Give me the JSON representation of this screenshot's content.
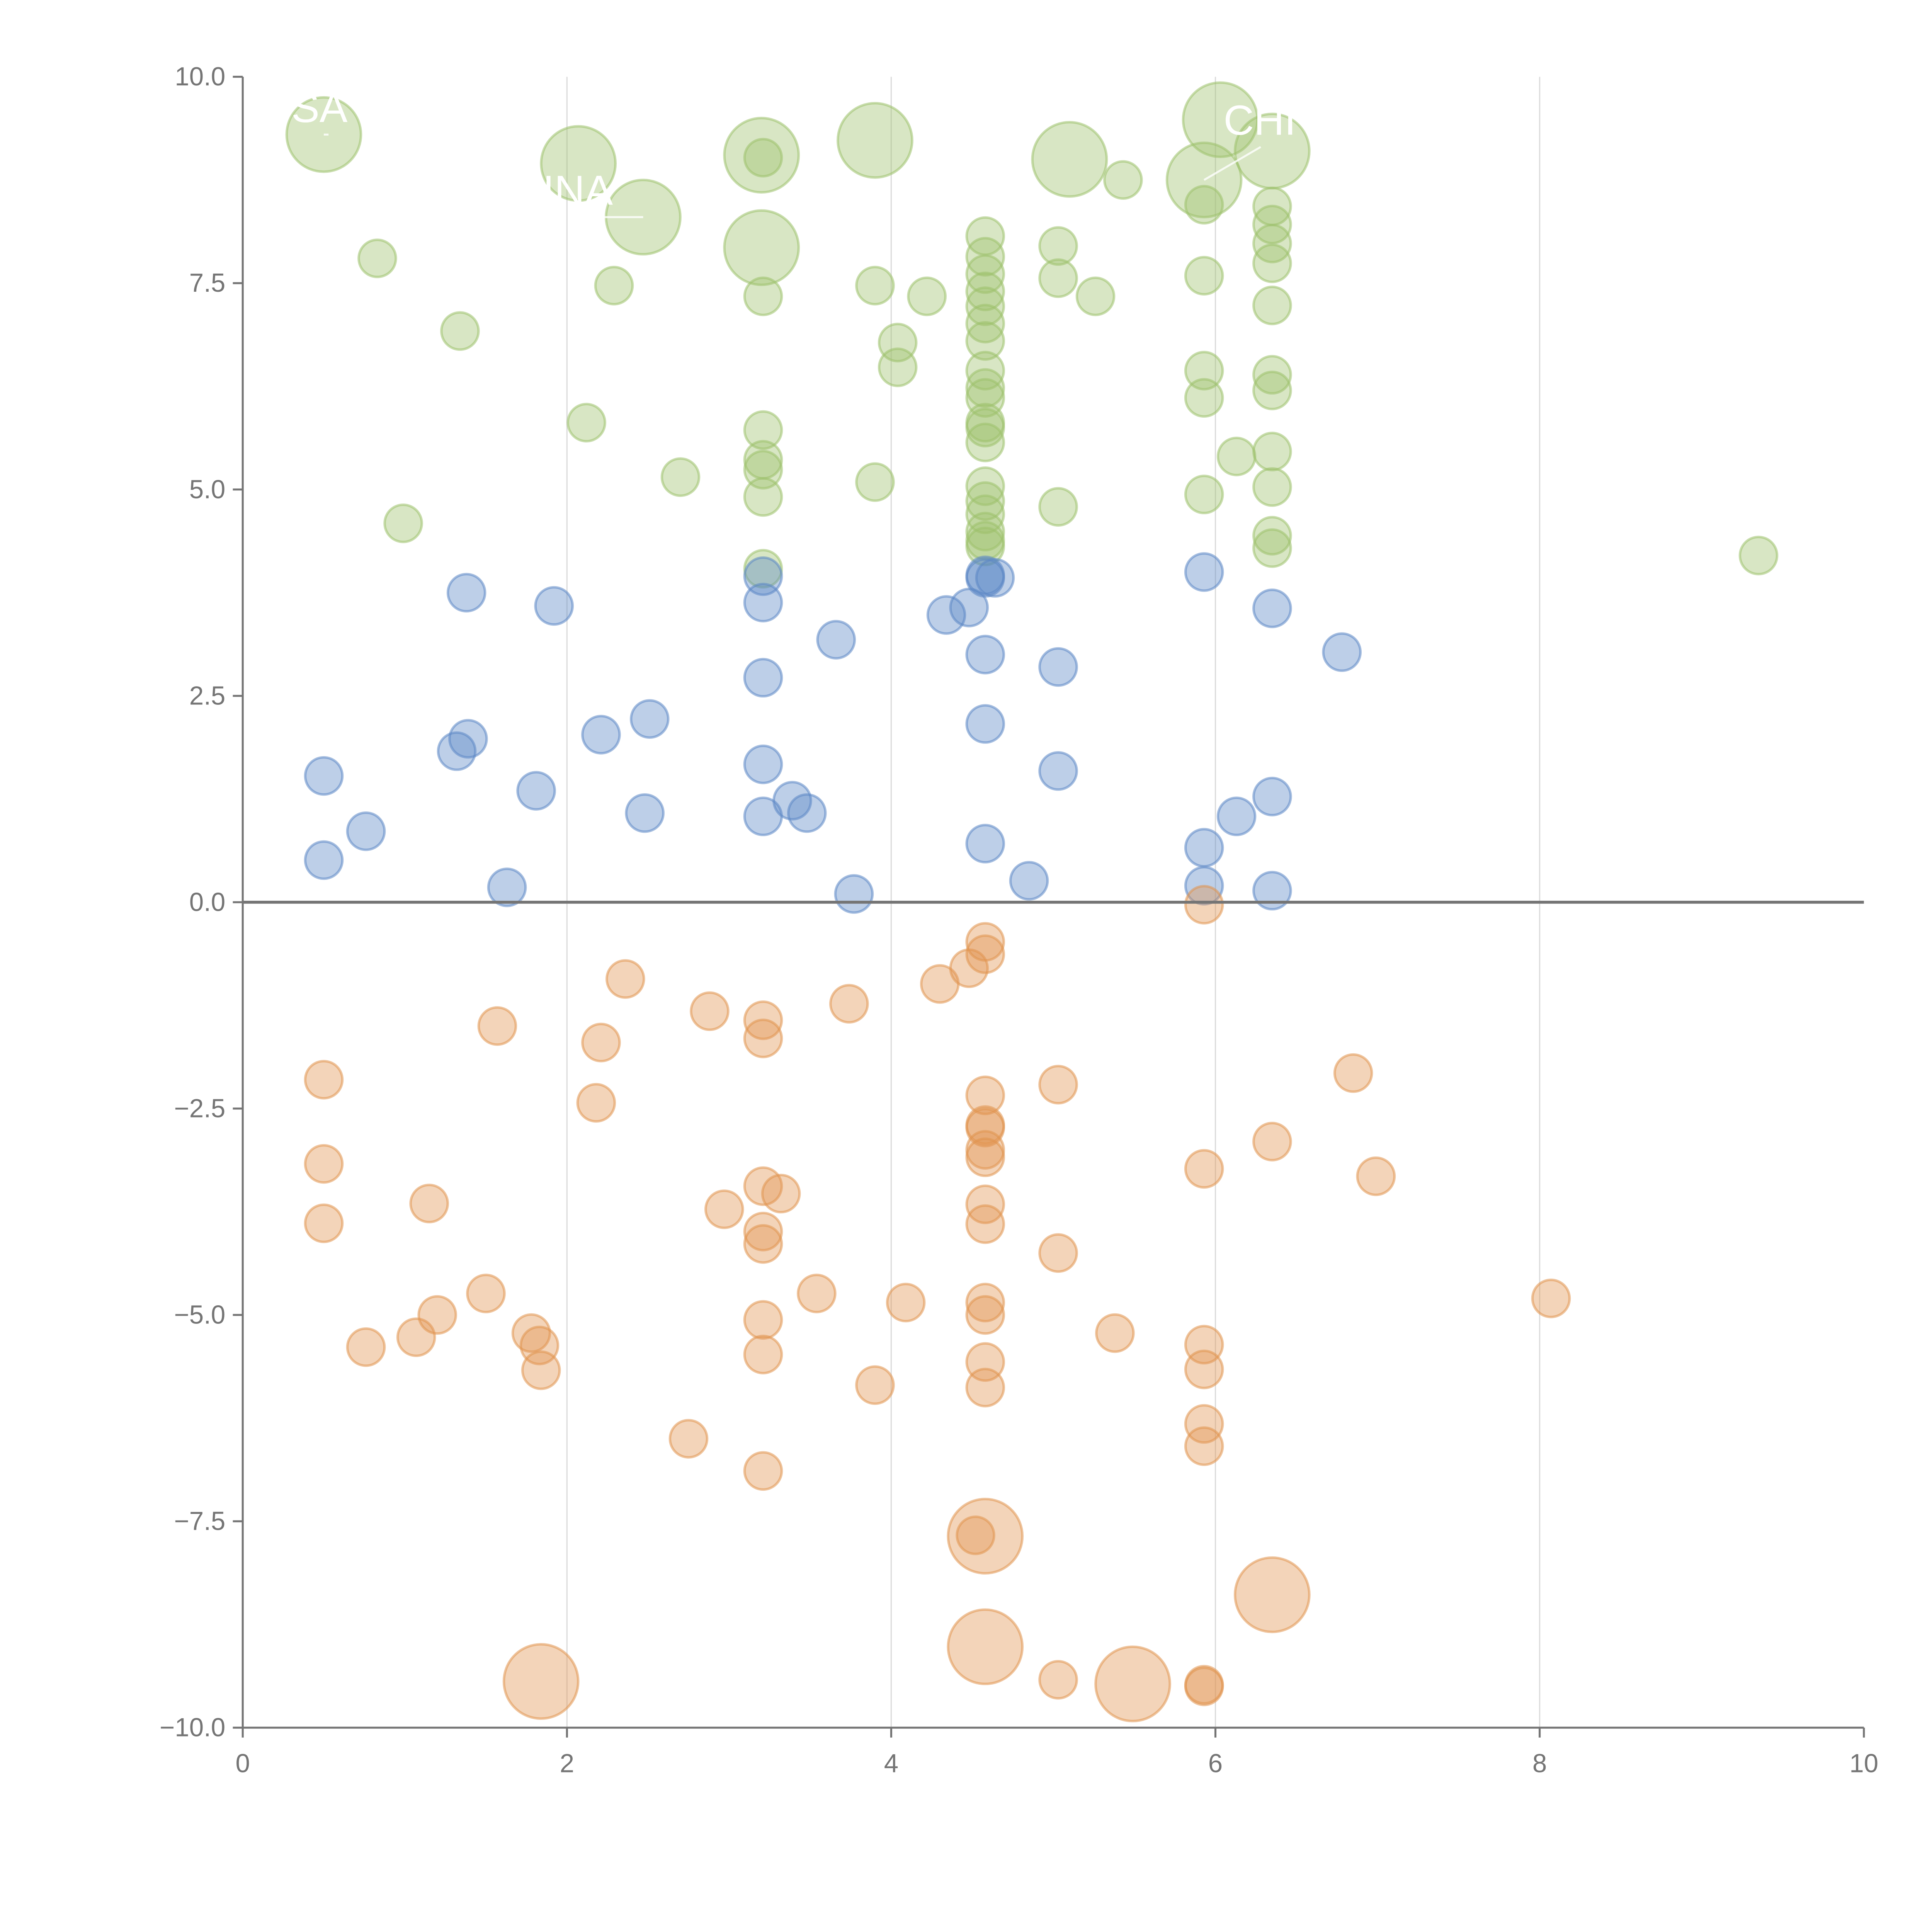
{
  "chart_data": {
    "type": "scatter",
    "title": "",
    "xlabel": "",
    "ylabel": "",
    "xlim": [
      0,
      10
    ],
    "ylim": [
      -10,
      10
    ],
    "xticks": [
      "0",
      "2",
      "4",
      "6",
      "8",
      "10"
    ],
    "yticks": [
      "10.0",
      "7.5",
      "5.0",
      "2.5",
      "0.0",
      "−2.5",
      "−5.0",
      "−7.5",
      "−10.0"
    ],
    "grid": "vertical",
    "reference_line_y": 0,
    "series": [
      {
        "name": "green",
        "color": "#9dc16b",
        "points": [
          [
            0.5,
            9.3,
            4
          ],
          [
            2.07,
            8.95,
            4
          ],
          [
            2.47,
            8.3,
            4
          ],
          [
            3.2,
            9.05,
            4
          ],
          [
            3.2,
            7.93,
            4
          ],
          [
            3.9,
            9.23,
            4
          ],
          [
            5.1,
            9.0,
            4
          ],
          [
            5.93,
            8.75,
            4
          ],
          [
            6.03,
            9.48,
            4
          ],
          [
            6.35,
            9.1,
            4
          ],
          [
            0.83,
            7.8,
            1
          ],
          [
            1.34,
            6.92,
            1
          ],
          [
            0.99,
            4.59,
            1
          ],
          [
            2.29,
            7.47,
            1
          ],
          [
            2.12,
            5.81,
            1
          ],
          [
            2.7,
            5.15,
            1
          ],
          [
            3.21,
            9.02,
            1
          ],
          [
            3.21,
            7.34,
            1
          ],
          [
            3.21,
            5.72,
            1
          ],
          [
            3.21,
            5.36,
            1
          ],
          [
            3.21,
            5.24,
            1
          ],
          [
            3.21,
            4.91,
            1
          ],
          [
            3.21,
            4.04,
            1
          ],
          [
            3.9,
            7.47,
            1
          ],
          [
            3.9,
            5.09,
            1
          ],
          [
            4.22,
            7.34,
            1
          ],
          [
            4.04,
            6.78,
            1
          ],
          [
            4.04,
            6.48,
            1
          ],
          [
            4.58,
            8.07,
            1
          ],
          [
            4.58,
            7.82,
            1
          ],
          [
            4.58,
            7.61,
            1
          ],
          [
            4.58,
            7.4,
            1
          ],
          [
            4.58,
            7.22,
            1
          ],
          [
            4.58,
            7.01,
            1
          ],
          [
            4.58,
            6.8,
            1
          ],
          [
            4.58,
            6.44,
            1
          ],
          [
            4.58,
            6.23,
            1
          ],
          [
            4.58,
            6.11,
            1
          ],
          [
            4.58,
            5.81,
            1
          ],
          [
            4.58,
            5.75,
            1
          ],
          [
            4.58,
            5.57,
            1
          ],
          [
            4.58,
            5.04,
            1
          ],
          [
            4.58,
            4.86,
            1
          ],
          [
            4.58,
            4.7,
            1
          ],
          [
            4.58,
            4.49,
            1
          ],
          [
            4.58,
            4.38,
            1
          ],
          [
            4.58,
            4.31,
            1
          ],
          [
            5.03,
            7.95,
            1
          ],
          [
            5.03,
            7.56,
            1
          ],
          [
            5.03,
            4.79,
            1
          ],
          [
            5.26,
            7.34,
            1
          ],
          [
            5.43,
            8.75,
            1
          ],
          [
            5.93,
            8.45,
            1
          ],
          [
            5.93,
            7.59,
            1
          ],
          [
            5.93,
            6.44,
            1
          ],
          [
            5.93,
            6.11,
            1
          ],
          [
            5.93,
            4.94,
            1
          ],
          [
            6.13,
            5.4,
            1
          ],
          [
            6.35,
            8.43,
            1
          ],
          [
            6.35,
            8.21,
            1
          ],
          [
            6.35,
            7.98,
            1
          ],
          [
            6.35,
            7.74,
            1
          ],
          [
            6.35,
            7.23,
            1
          ],
          [
            6.35,
            6.39,
            1
          ],
          [
            6.35,
            6.2,
            1
          ],
          [
            6.35,
            5.46,
            1
          ],
          [
            6.35,
            5.03,
            1
          ],
          [
            6.35,
            4.44,
            1
          ],
          [
            6.35,
            4.29,
            1
          ],
          [
            9.35,
            4.2,
            1
          ]
        ]
      },
      {
        "name": "blue",
        "color": "#5b87c5",
        "points": [
          [
            0.5,
            1.53,
            1
          ],
          [
            0.5,
            0.51,
            1
          ],
          [
            0.76,
            0.86,
            1
          ],
          [
            1.38,
            3.75,
            1
          ],
          [
            1.39,
            1.98,
            1
          ],
          [
            1.32,
            1.83,
            1
          ],
          [
            1.63,
            0.18,
            1
          ],
          [
            1.81,
            1.35,
            1
          ],
          [
            1.92,
            3.59,
            1
          ],
          [
            2.21,
            2.03,
            1
          ],
          [
            2.51,
            2.22,
            1
          ],
          [
            2.48,
            1.08,
            1
          ],
          [
            3.21,
            3.95,
            1
          ],
          [
            3.21,
            3.63,
            1
          ],
          [
            3.21,
            2.72,
            1
          ],
          [
            3.21,
            1.67,
            1
          ],
          [
            3.21,
            1.04,
            1
          ],
          [
            3.39,
            1.23,
            1
          ],
          [
            3.48,
            1.08,
            1
          ],
          [
            3.66,
            3.18,
            1
          ],
          [
            3.77,
            0.1,
            1
          ],
          [
            4.34,
            3.48,
            1
          ],
          [
            4.48,
            3.57,
            1
          ],
          [
            4.58,
            3.96,
            1
          ],
          [
            4.58,
            3.93,
            1
          ],
          [
            4.58,
            3.0,
            1
          ],
          [
            4.58,
            2.16,
            1
          ],
          [
            4.58,
            0.71,
            1
          ],
          [
            4.64,
            3.93,
            1
          ],
          [
            4.85,
            0.26,
            1
          ],
          [
            5.03,
            2.85,
            1
          ],
          [
            5.03,
            1.59,
            1
          ],
          [
            5.93,
            4.0,
            1
          ],
          [
            5.93,
            0.66,
            1
          ],
          [
            5.93,
            0.2,
            1
          ],
          [
            6.13,
            1.04,
            1
          ],
          [
            6.35,
            3.56,
            1
          ],
          [
            6.35,
            1.28,
            1
          ],
          [
            6.35,
            0.14,
            1
          ],
          [
            6.78,
            3.03,
            1
          ]
        ]
      },
      {
        "name": "orange",
        "color": "#e0934f",
        "points": [
          [
            1.84,
            -9.44,
            4
          ],
          [
            4.58,
            -7.68,
            4
          ],
          [
            4.58,
            -9.02,
            4
          ],
          [
            5.49,
            -9.47,
            4
          ],
          [
            6.35,
            -8.39,
            4
          ],
          [
            0.5,
            -2.15,
            1
          ],
          [
            0.5,
            -3.17,
            1
          ],
          [
            0.5,
            -3.89,
            1
          ],
          [
            0.76,
            -5.39,
            1
          ],
          [
            1.07,
            -5.27,
            1
          ],
          [
            1.15,
            -3.65,
            1
          ],
          [
            1.2,
            -5.0,
            1
          ],
          [
            1.5,
            -4.74,
            1
          ],
          [
            1.57,
            -1.5,
            1
          ],
          [
            1.78,
            -5.22,
            1
          ],
          [
            1.83,
            -5.37,
            1
          ],
          [
            1.84,
            -5.67,
            1
          ],
          [
            2.18,
            -2.43,
            1
          ],
          [
            2.21,
            -1.7,
            1
          ],
          [
            2.36,
            -0.93,
            1
          ],
          [
            2.75,
            -6.5,
            1
          ],
          [
            2.88,
            -1.32,
            1
          ],
          [
            2.97,
            -3.72,
            1
          ],
          [
            3.21,
            -1.43,
            1
          ],
          [
            3.21,
            -1.65,
            1
          ],
          [
            3.21,
            -3.44,
            1
          ],
          [
            3.21,
            -3.99,
            1
          ],
          [
            3.21,
            -4.14,
            1
          ],
          [
            3.21,
            -5.06,
            1
          ],
          [
            3.21,
            -5.48,
            1
          ],
          [
            3.21,
            -6.89,
            1
          ],
          [
            3.32,
            -3.53,
            1
          ],
          [
            3.54,
            -4.74,
            1
          ],
          [
            3.74,
            -1.23,
            1
          ],
          [
            3.9,
            -5.85,
            1
          ],
          [
            4.09,
            -4.85,
            1
          ],
          [
            4.3,
            -0.99,
            1
          ],
          [
            4.48,
            -0.8,
            1
          ],
          [
            4.58,
            -0.48,
            1
          ],
          [
            4.58,
            -0.63,
            1
          ],
          [
            4.58,
            -2.34,
            1
          ],
          [
            4.58,
            -2.7,
            1
          ],
          [
            4.58,
            -2.73,
            1
          ],
          [
            4.58,
            -3.0,
            1
          ],
          [
            4.58,
            -3.09,
            1
          ],
          [
            4.58,
            -3.66,
            1
          ],
          [
            4.58,
            -3.9,
            1
          ],
          [
            4.58,
            -4.85,
            1
          ],
          [
            4.58,
            -5.0,
            1
          ],
          [
            4.58,
            -5.57,
            1
          ],
          [
            4.58,
            -5.88,
            1
          ],
          [
            4.52,
            -7.67,
            1
          ],
          [
            5.03,
            -2.21,
            1
          ],
          [
            5.03,
            -4.25,
            1
          ],
          [
            5.03,
            -9.42,
            1
          ],
          [
            5.38,
            -5.22,
            1
          ],
          [
            5.93,
            -0.03,
            1
          ],
          [
            5.93,
            -3.23,
            1
          ],
          [
            5.93,
            -5.36,
            1
          ],
          [
            5.93,
            -5.66,
            1
          ],
          [
            5.93,
            -6.32,
            1
          ],
          [
            5.93,
            -6.59,
            1
          ],
          [
            5.93,
            -9.48,
            1
          ],
          [
            5.93,
            -9.5,
            1
          ],
          [
            6.35,
            -2.9,
            1
          ],
          [
            6.85,
            -2.07,
            1
          ],
          [
            6.99,
            -3.32,
            1
          ],
          [
            8.07,
            -4.8,
            1
          ]
        ]
      }
    ],
    "annotations": [
      {
        "text": "SA",
        "x": 0.3,
        "y": 9.45,
        "px": 0.5,
        "py": 9.3
      },
      {
        "text": "INA",
        "x": 1.85,
        "y": 8.45,
        "px": 2.47,
        "py": 8.3
      },
      {
        "text": "CHI",
        "x": 6.05,
        "y": 9.3,
        "px": 5.93,
        "py": 8.75
      }
    ]
  }
}
